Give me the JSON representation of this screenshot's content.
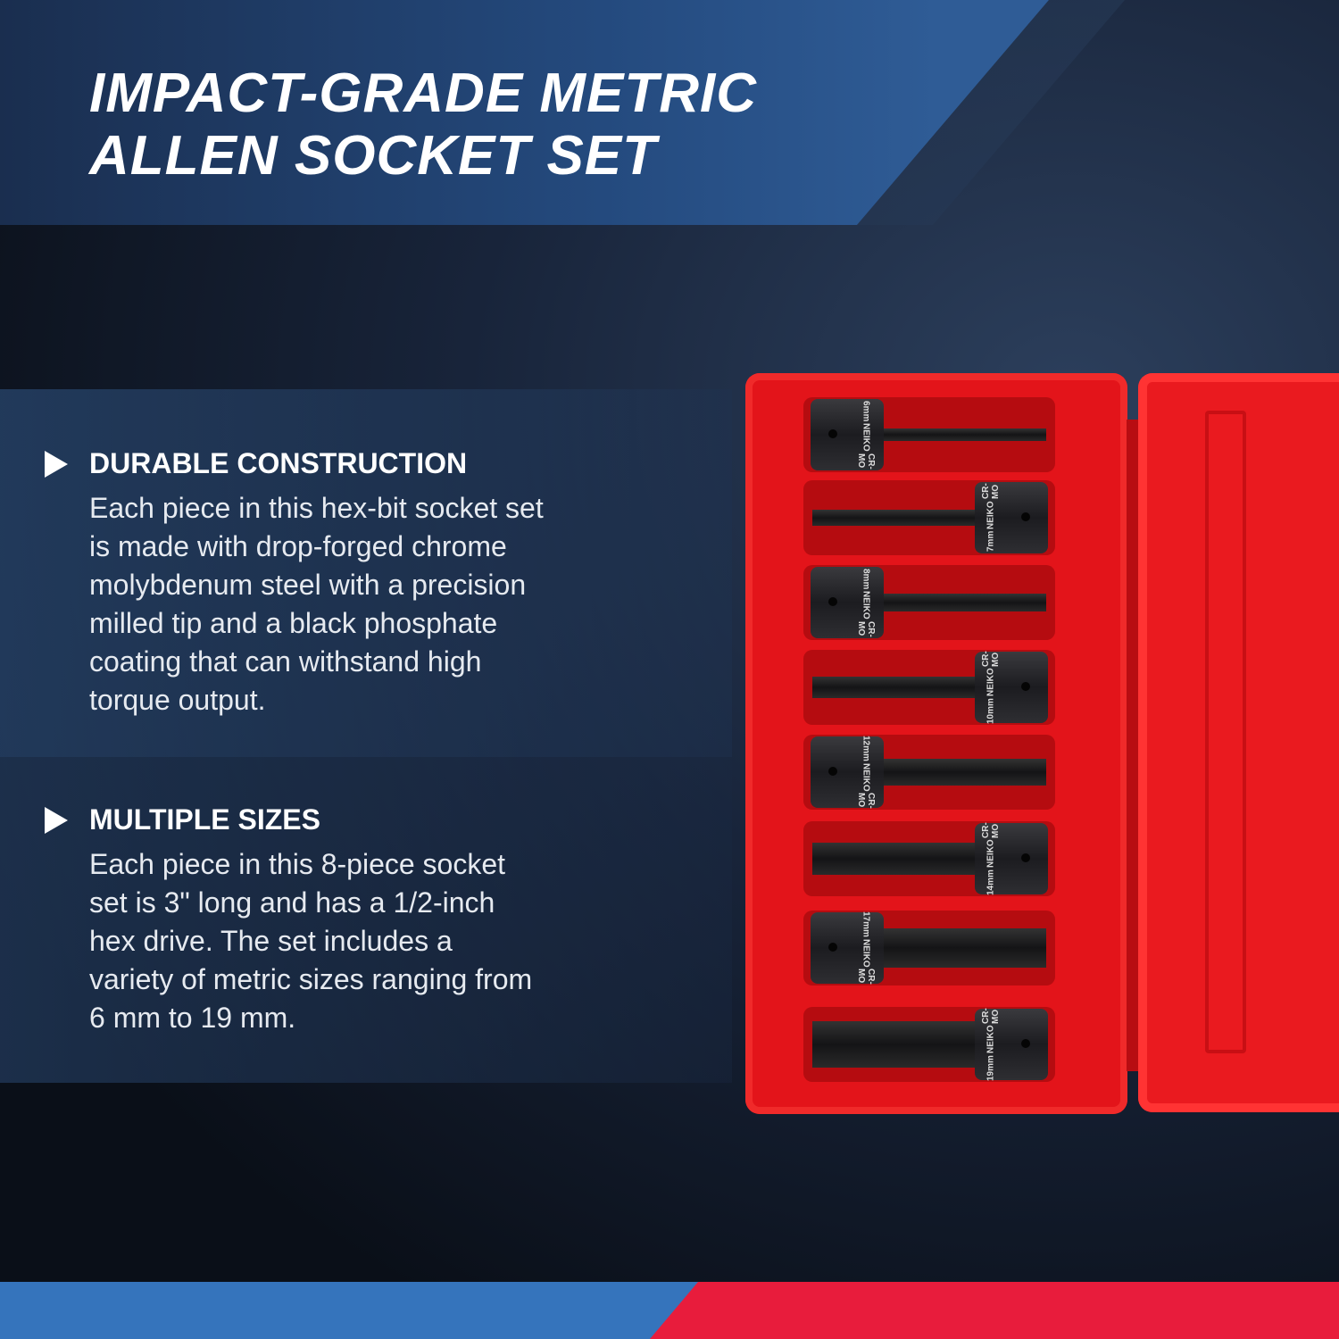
{
  "title": {
    "line1": "IMPACT-GRADE METRIC",
    "line2": "ALLEN SOCKET SET"
  },
  "features": [
    {
      "icon": "play-triangle-icon",
      "heading": "DURABLE CONSTRUCTION",
      "lines": [
        "Each piece in this hex-bit socket set",
        "is made with drop-forged chrome",
        "molybdenum steel with a precision",
        "milled tip and a black phosphate",
        "coating that can withstand high",
        "torque output."
      ]
    },
    {
      "icon": "play-triangle-icon",
      "heading": "MULTIPLE SIZES",
      "lines": [
        "Each piece in this 8-piece socket",
        "set is 3\" long and has a 1/2-inch",
        "hex drive. The set includes a",
        "variety of metric sizes ranging from",
        "6 mm to 19 mm."
      ]
    }
  ],
  "product": {
    "brand": "NEIKO",
    "material": "CR-MO",
    "sizes": [
      "6mm",
      "7mm",
      "8mm",
      "10mm",
      "12mm",
      "14mm",
      "17mm",
      "19mm"
    ]
  },
  "colors": {
    "blue": "#3574bc",
    "red": "#e81c3c",
    "case_red": "#e3141a",
    "background": "#0b1018"
  }
}
